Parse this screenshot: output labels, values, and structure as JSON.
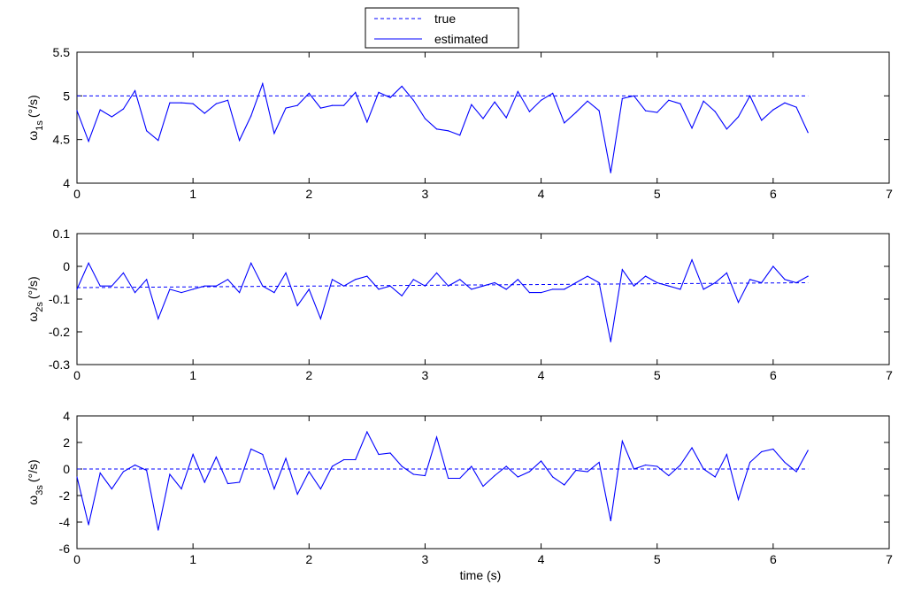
{
  "legend": {
    "true_label": "true",
    "estimated_label": "estimated",
    "position": "top-center"
  },
  "colors": {
    "series": "#0000ff",
    "axes": "#000000",
    "background": "#ffffff"
  },
  "chart_data": [
    {
      "type": "line",
      "title": "",
      "ylabel_symbol": "ω",
      "ylabel_sub": "1s",
      "ylabel_unit": "(°/s)",
      "xlabel": "",
      "xlim": [
        0,
        7
      ],
      "ylim": [
        4,
        5.5
      ],
      "xticks": [
        "0",
        "1",
        "2",
        "3",
        "4",
        "5",
        "6",
        "7"
      ],
      "yticks": [
        "4",
        "4.5",
        "5",
        "5.5"
      ],
      "grid": false,
      "series": [
        {
          "name": "true",
          "style": "dashed",
          "x": [
            0,
            6.3
          ],
          "y": [
            5.0,
            5.0
          ]
        },
        {
          "name": "estimated",
          "style": "solid",
          "x": [
            0,
            0.1,
            0.2,
            0.3,
            0.4,
            0.5,
            0.6,
            0.7,
            0.8,
            0.9,
            1.0,
            1.1,
            1.2,
            1.3,
            1.4,
            1.5,
            1.6,
            1.7,
            1.8,
            1.9,
            2.0,
            2.1,
            2.2,
            2.3,
            2.4,
            2.5,
            2.6,
            2.7,
            2.8,
            2.9,
            3.0,
            3.1,
            3.2,
            3.3,
            3.4,
            3.5,
            3.6,
            3.7,
            3.8,
            3.9,
            4.0,
            4.1,
            4.2,
            4.3,
            4.4,
            4.5,
            4.6,
            4.7,
            4.8,
            4.9,
            5.0,
            5.1,
            5.2,
            5.3,
            5.4,
            5.5,
            5.6,
            5.7,
            5.8,
            5.9,
            6.0,
            6.1,
            6.2,
            6.3
          ],
          "y": [
            4.83,
            4.48,
            4.84,
            4.76,
            4.85,
            5.06,
            4.6,
            4.49,
            4.92,
            4.92,
            4.91,
            4.8,
            4.91,
            4.95,
            4.49,
            4.77,
            5.14,
            4.57,
            4.86,
            4.89,
            5.03,
            4.86,
            4.89,
            4.89,
            5.04,
            4.7,
            5.04,
            4.98,
            5.11,
            4.95,
            4.74,
            4.62,
            4.6,
            4.55,
            4.9,
            4.74,
            4.93,
            4.75,
            5.05,
            4.82,
            4.95,
            5.03,
            4.69,
            4.81,
            4.94,
            4.83,
            4.12,
            4.97,
            5.0,
            4.83,
            4.81,
            4.95,
            4.91,
            4.63,
            4.94,
            4.82,
            4.62,
            4.76,
            5.0,
            4.72,
            4.84,
            4.92,
            4.87,
            4.58
          ]
        }
      ]
    },
    {
      "type": "line",
      "title": "",
      "ylabel_symbol": "ω",
      "ylabel_sub": "2s",
      "ylabel_unit": "(°/s)",
      "xlabel": "",
      "xlim": [
        0,
        7
      ],
      "ylim": [
        -0.3,
        0.1
      ],
      "xticks": [
        "0",
        "1",
        "2",
        "3",
        "4",
        "5",
        "6",
        "7"
      ],
      "yticks": [
        "-0.3",
        "-0.2",
        "-0.1",
        "0",
        "0.1"
      ],
      "grid": false,
      "series": [
        {
          "name": "true",
          "style": "dashed",
          "x": [
            0,
            6.3
          ],
          "y": [
            -0.065,
            -0.05
          ]
        },
        {
          "name": "estimated",
          "style": "solid",
          "x": [
            0,
            0.1,
            0.2,
            0.3,
            0.4,
            0.5,
            0.6,
            0.7,
            0.8,
            0.9,
            1.0,
            1.1,
            1.2,
            1.3,
            1.4,
            1.5,
            1.6,
            1.7,
            1.8,
            1.9,
            2.0,
            2.1,
            2.2,
            2.3,
            2.4,
            2.5,
            2.6,
            2.7,
            2.8,
            2.9,
            3.0,
            3.1,
            3.2,
            3.3,
            3.4,
            3.5,
            3.6,
            3.7,
            3.8,
            3.9,
            4.0,
            4.1,
            4.2,
            4.3,
            4.4,
            4.5,
            4.6,
            4.7,
            4.8,
            4.9,
            5.0,
            5.1,
            5.2,
            5.3,
            5.4,
            5.5,
            5.6,
            5.7,
            5.8,
            5.9,
            6.0,
            6.1,
            6.2,
            6.3
          ],
          "y": [
            -0.07,
            0.01,
            -0.06,
            -0.06,
            -0.02,
            -0.08,
            -0.04,
            -0.16,
            -0.07,
            -0.08,
            -0.07,
            -0.06,
            -0.06,
            -0.04,
            -0.08,
            0.01,
            -0.06,
            -0.08,
            -0.02,
            -0.12,
            -0.07,
            -0.16,
            -0.04,
            -0.06,
            -0.04,
            -0.03,
            -0.07,
            -0.06,
            -0.09,
            -0.04,
            -0.06,
            -0.02,
            -0.06,
            -0.04,
            -0.07,
            -0.06,
            -0.05,
            -0.07,
            -0.04,
            -0.08,
            -0.08,
            -0.07,
            -0.07,
            -0.05,
            -0.03,
            -0.05,
            -0.23,
            -0.01,
            -0.06,
            -0.03,
            -0.05,
            -0.06,
            -0.07,
            0.02,
            -0.07,
            -0.05,
            -0.02,
            -0.11,
            -0.04,
            -0.05,
            0.0,
            -0.04,
            -0.05,
            -0.03
          ]
        }
      ]
    },
    {
      "type": "line",
      "title": "",
      "ylabel_symbol": "ω",
      "ylabel_sub": "3s",
      "ylabel_unit": "(°/s)",
      "xlabel": "time (s)",
      "xlim": [
        0,
        7
      ],
      "ylim": [
        -6,
        4
      ],
      "xticks": [
        "0",
        "1",
        "2",
        "3",
        "4",
        "5",
        "6",
        "7"
      ],
      "yticks": [
        "-6",
        "-4",
        "-2",
        "0",
        "2",
        "4"
      ],
      "grid": false,
      "series": [
        {
          "name": "true",
          "style": "dashed",
          "x": [
            0,
            6.3
          ],
          "y": [
            0,
            0
          ]
        },
        {
          "name": "estimated",
          "style": "solid",
          "x": [
            0,
            0.1,
            0.2,
            0.3,
            0.4,
            0.5,
            0.6,
            0.7,
            0.8,
            0.9,
            1.0,
            1.1,
            1.2,
            1.3,
            1.4,
            1.5,
            1.6,
            1.7,
            1.8,
            1.9,
            2.0,
            2.1,
            2.2,
            2.3,
            2.4,
            2.5,
            2.6,
            2.7,
            2.8,
            2.9,
            3.0,
            3.1,
            3.2,
            3.3,
            3.4,
            3.5,
            3.6,
            3.7,
            3.8,
            3.9,
            4.0,
            4.1,
            4.2,
            4.3,
            4.4,
            4.5,
            4.6,
            4.7,
            4.8,
            4.9,
            5.0,
            5.1,
            5.2,
            5.3,
            5.4,
            5.5,
            5.6,
            5.7,
            5.8,
            5.9,
            6.0,
            6.1,
            6.2,
            6.3
          ],
          "y": [
            -0.6,
            -4.2,
            -0.3,
            -1.5,
            -0.2,
            0.3,
            -0.1,
            -4.6,
            -0.4,
            -1.5,
            1.1,
            -1.0,
            0.9,
            -1.1,
            -1.0,
            1.5,
            1.1,
            -1.5,
            0.8,
            -1.9,
            -0.2,
            -1.5,
            0.2,
            0.7,
            0.7,
            2.8,
            1.1,
            1.2,
            0.2,
            -0.4,
            -0.5,
            2.4,
            -0.7,
            -0.7,
            0.2,
            -1.3,
            -0.5,
            0.2,
            -0.6,
            -0.2,
            0.6,
            -0.6,
            -1.2,
            -0.1,
            -0.2,
            0.5,
            -3.9,
            2.1,
            0.0,
            0.3,
            0.2,
            -0.5,
            0.3,
            1.6,
            0.0,
            -0.6,
            1.1,
            -2.3,
            0.5,
            1.3,
            1.5,
            0.5,
            -0.2,
            1.4
          ]
        }
      ]
    }
  ]
}
